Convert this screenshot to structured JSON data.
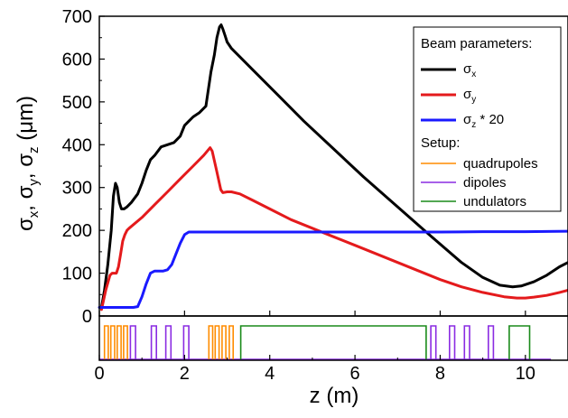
{
  "chart_data": {
    "type": "line",
    "xlabel": "z (m)",
    "ylabel": {
      "sigma1": "σ",
      "sub1": "x",
      "sep1": ", ",
      "sigma2": "σ",
      "sub2": "y",
      "sep2": ", ",
      "sigma3": "σ",
      "sub3": "z",
      "unit": " (μm)"
    },
    "xlim": [
      0,
      11
    ],
    "ylim": [
      0,
      700
    ],
    "x_ticks": [
      0,
      2,
      4,
      6,
      8,
      10
    ],
    "y_ticks": [
      0,
      100,
      200,
      300,
      400,
      500,
      600,
      700
    ],
    "grid": false,
    "legend_position": "top-right",
    "legend": {
      "beam_header": "Beam parameters:",
      "setup_header": "Setup:",
      "sx": {
        "sym": "σ",
        "sub": "x",
        "suffix": ""
      },
      "sy": {
        "sym": "σ",
        "sub": "y",
        "suffix": ""
      },
      "sz": {
        "sym": "σ",
        "sub": "z",
        "suffix": " * 20"
      },
      "quadrupoles": "quadrupoles",
      "dipoles": "dipoles",
      "undulators": "undulators"
    },
    "colors": {
      "sx": "#000000",
      "sy": "#e41a1c",
      "sz": "#1a1aff",
      "quadrupoles": "#ff8c00",
      "dipoles": "#8a2be2",
      "undulators": "#1a8a1a"
    },
    "series": [
      {
        "key": "sx",
        "x": [
          0.05,
          0.12,
          0.2,
          0.28,
          0.33,
          0.38,
          0.42,
          0.47,
          0.52,
          0.58,
          0.65,
          0.75,
          0.9,
          1.0,
          1.1,
          1.2,
          1.3,
          1.45,
          1.6,
          1.75,
          1.9,
          2.0,
          2.1,
          2.2,
          2.35,
          2.5,
          2.62,
          2.7,
          2.76,
          2.82,
          2.86,
          2.9,
          2.95,
          3.0,
          3.1,
          3.2,
          3.6,
          4.2,
          4.8,
          5.5,
          6.2,
          7.0,
          7.8,
          8.5,
          9.0,
          9.4,
          9.7,
          9.9,
          10.2,
          10.5,
          10.8,
          11.0
        ],
        "y": [
          20,
          60,
          120,
          200,
          280,
          310,
          300,
          265,
          250,
          250,
          255,
          265,
          285,
          310,
          340,
          365,
          375,
          395,
          400,
          405,
          420,
          445,
          455,
          465,
          475,
          490,
          570,
          610,
          650,
          675,
          680,
          670,
          655,
          640,
          625,
          615,
          575,
          515,
          455,
          390,
          325,
          255,
          185,
          125,
          90,
          72,
          68,
          70,
          80,
          95,
          115,
          125
        ]
      },
      {
        "key": "sy",
        "x": [
          0.05,
          0.15,
          0.25,
          0.3,
          0.35,
          0.4,
          0.45,
          0.5,
          0.55,
          0.6,
          0.65,
          0.7,
          1.0,
          1.3,
          1.6,
          1.9,
          2.2,
          2.45,
          2.6,
          2.65,
          2.75,
          2.85,
          2.9,
          3.0,
          3.1,
          3.3,
          3.6,
          4.0,
          4.5,
          5.0,
          5.5,
          6.0,
          6.5,
          7.0,
          7.5,
          8.0,
          8.5,
          9.0,
          9.5,
          9.8,
          10.0,
          10.2,
          10.5,
          10.8,
          11.0
        ],
        "y": [
          15,
          60,
          95,
          100,
          100,
          100,
          115,
          145,
          175,
          190,
          200,
          205,
          230,
          260,
          290,
          320,
          350,
          375,
          393,
          385,
          340,
          295,
          288,
          290,
          290,
          285,
          270,
          250,
          225,
          205,
          185,
          165,
          145,
          125,
          105,
          85,
          68,
          55,
          45,
          42,
          42,
          44,
          48,
          55,
          60
        ]
      },
      {
        "key": "sz",
        "x": [
          0.0,
          0.3,
          0.6,
          0.8,
          0.9,
          1.0,
          1.1,
          1.2,
          1.3,
          1.5,
          1.6,
          1.7,
          1.8,
          1.9,
          2.0,
          2.1,
          2.5,
          3.0,
          4.0,
          5.0,
          6.0,
          7.0,
          8.0,
          9.0,
          10.0,
          11.0
        ],
        "y": [
          20,
          20,
          20,
          20,
          22,
          45,
          75,
          100,
          105,
          105,
          108,
          120,
          145,
          170,
          190,
          196,
          196,
          196,
          196,
          196,
          196,
          196,
          196,
          197,
          197,
          198
        ]
      }
    ],
    "setup": {
      "quadrupoles": [
        [
          0.12,
          0.21
        ],
        [
          0.27,
          0.36
        ],
        [
          0.42,
          0.51
        ],
        [
          0.57,
          0.66
        ],
        [
          2.57,
          2.66
        ],
        [
          2.72,
          2.81
        ],
        [
          2.88,
          2.97
        ],
        [
          3.05,
          3.14
        ]
      ],
      "dipoles": [
        [
          0.73,
          0.85
        ],
        [
          1.22,
          1.34
        ],
        [
          1.56,
          1.68
        ],
        [
          1.98,
          2.1
        ],
        [
          7.78,
          7.9
        ],
        [
          8.22,
          8.34
        ],
        [
          8.57,
          8.69
        ],
        [
          9.13,
          9.25
        ]
      ],
      "undulators": [
        [
          3.32,
          7.67
        ],
        [
          9.62,
          10.1
        ]
      ],
      "x_start": 0.0,
      "x_end": 10.6
    }
  }
}
